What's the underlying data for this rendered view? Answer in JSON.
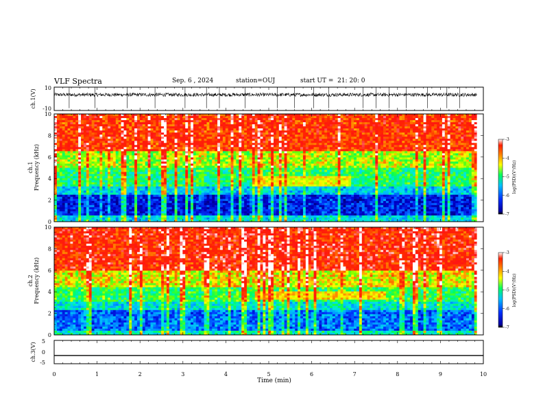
{
  "header": {
    "title": "VLF Spectra",
    "date": "Sep. 6 , 2024",
    "station": "station=OUJ",
    "start": "start UT =  21: 20: 0"
  },
  "colors": {
    "colormap": [
      "#0000a0",
      "#0030ff",
      "#00c0ff",
      "#00ff60",
      "#ffff00",
      "#ff8000",
      "#ff2000"
    ],
    "waveform": "#000000"
  },
  "chart_data": [
    {
      "type": "line",
      "name": "ch1-waveform",
      "ylabel": "ch.1(V)",
      "ylim": [
        -10,
        10
      ],
      "yticks": [
        "10",
        "-10"
      ],
      "xlim": [
        0,
        10
      ],
      "baseline": 3.5,
      "noise_amplitude": 1.5,
      "spikes": [
        0.35,
        0.95,
        1.7,
        2.35,
        3.05,
        3.55,
        3.85,
        4.45,
        5.2,
        5.6,
        6.05,
        6.4,
        7.2,
        7.5,
        7.8,
        8.2,
        8.7,
        9.15,
        9.45
      ]
    },
    {
      "type": "heatmap",
      "name": "ch1-spectrogram",
      "ylabel": "ch.1\nFrequency (kHz)",
      "xlim": [
        0,
        9.85
      ],
      "ylim": [
        0,
        10
      ],
      "yticks": [
        "0",
        "2",
        "4",
        "6",
        "8",
        "10"
      ],
      "colorbar": {
        "label": "log(PSD)(V²/Hz)",
        "range": [
          -7,
          -3
        ],
        "ticks": [
          "-3",
          "-4",
          "-5",
          "-6",
          "-7"
        ]
      },
      "bands": [
        {
          "from": 0,
          "to": 0.5,
          "level": -5.5
        },
        {
          "from": 0.5,
          "to": 2.5,
          "level": -6.4
        },
        {
          "from": 2.5,
          "to": 3.3,
          "level": -5.6
        },
        {
          "from": 3.3,
          "to": 5.0,
          "level": -5.0
        },
        {
          "from": 5.0,
          "to": 6.5,
          "level": -4.5
        },
        {
          "from": 6.5,
          "to": 10,
          "level": -3.6
        }
      ],
      "emission": {
        "t_start": 4.7,
        "t_end": 6.9,
        "f_from": 3.2,
        "f_to": 4.3,
        "level": -4.3
      }
    },
    {
      "type": "heatmap",
      "name": "ch2-spectrogram",
      "ylabel": "ch.2\nFrequency (kHz)",
      "xlim": [
        0,
        9.85
      ],
      "ylim": [
        0,
        10
      ],
      "yticks": [
        "0",
        "2",
        "4",
        "6",
        "8",
        "10"
      ],
      "colorbar": {
        "label": "log(PSD)(V²/Hz)",
        "range": [
          -7,
          -3
        ],
        "ticks": [
          "-3",
          "-4",
          "-5",
          "-6",
          "-7"
        ]
      },
      "bands": [
        {
          "from": 0,
          "to": 0.4,
          "level": -5.3
        },
        {
          "from": 0.4,
          "to": 2.4,
          "level": -6.0
        },
        {
          "from": 2.4,
          "to": 3.0,
          "level": -5.4
        },
        {
          "from": 3.0,
          "to": 4.5,
          "level": -4.9
        },
        {
          "from": 4.5,
          "to": 6.0,
          "level": -4.3
        },
        {
          "from": 6.0,
          "to": 10,
          "level": -3.5
        }
      ],
      "emission": {
        "t_start": 4.7,
        "t_end": 7.7,
        "f_from": 3.3,
        "f_to": 4.1,
        "level": -4.2
      }
    },
    {
      "type": "line",
      "name": "ch3-waveform",
      "ylabel": "ch.3(V)",
      "ylim": [
        -5,
        5
      ],
      "yticks": [
        "5",
        "0",
        "-5"
      ],
      "xlim": [
        0,
        10
      ],
      "value": -1.5,
      "xlabel": "Time (min)",
      "xticks": [
        "0",
        "1",
        "2",
        "3",
        "4",
        "5",
        "6",
        "7",
        "8",
        "9",
        "10"
      ]
    }
  ]
}
